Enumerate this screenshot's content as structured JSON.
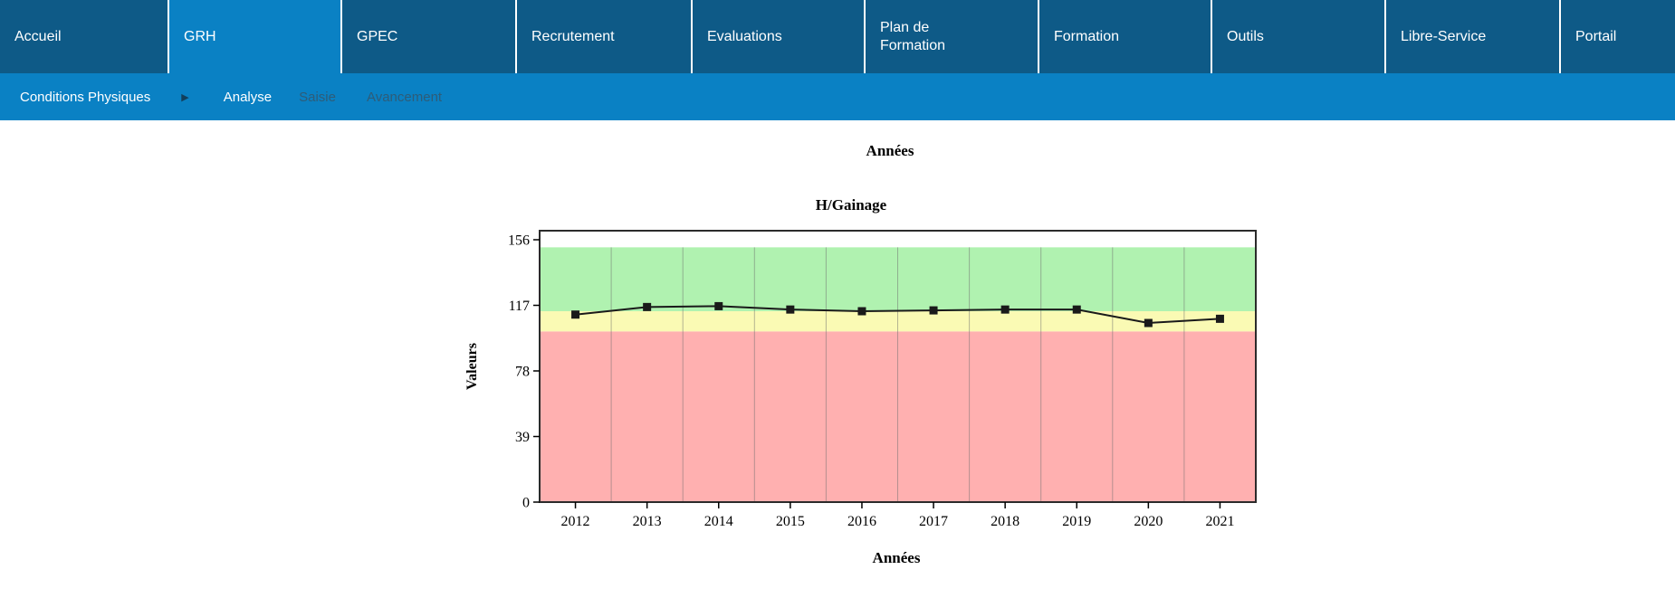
{
  "nav": {
    "tabs": [
      {
        "label": "Accueil",
        "active": false
      },
      {
        "label": "GRH",
        "active": true
      },
      {
        "label": "GPEC",
        "active": false
      },
      {
        "label": "Recrutement",
        "active": false
      },
      {
        "label": "Evaluations",
        "active": false
      },
      {
        "label": "Plan de Formation",
        "active": false
      },
      {
        "label": "Formation",
        "active": false
      },
      {
        "label": "Outils",
        "active": false
      },
      {
        "label": "Libre-Service",
        "active": false
      },
      {
        "label": "Portail",
        "active": false
      }
    ]
  },
  "subnav": {
    "breadcrumb": "Conditions Physiques",
    "arrow_icon": "▶",
    "items": [
      {
        "label": "Analyse",
        "state": "active"
      },
      {
        "label": "Saisie",
        "state": "disabled"
      },
      {
        "label": "Avancement",
        "state": "disabled"
      }
    ]
  },
  "colors": {
    "nav_background": "#0e5a87",
    "nav_active_background": "#0a81c4",
    "subnav_background": "#0a81c4",
    "subnav_disabled_text": "#2e5c78",
    "zone_green": "#b0f2b0",
    "zone_yellow": "#fafab4",
    "zone_red": "#ffb0b0",
    "series_line": "#1a1a1a"
  },
  "chart_data": {
    "type": "line",
    "top_label": "Années",
    "title": "H/Gainage",
    "xlabel": "Années",
    "ylabel": "Valeurs",
    "categories": [
      "2012",
      "2013",
      "2014",
      "2015",
      "2016",
      "2017",
      "2018",
      "2019",
      "2020",
      "2021"
    ],
    "values": [
      111.5,
      116,
      116.5,
      114.5,
      113.5,
      114,
      114.5,
      114.5,
      106.5,
      109
    ],
    "ylim": [
      0,
      156
    ],
    "yticks": [
      0,
      39,
      78,
      117,
      156
    ],
    "zones": [
      {
        "name": "red",
        "from": 0,
        "to": 101.5,
        "color": "#ffb0b0"
      },
      {
        "name": "yellow",
        "from": 101.5,
        "to": 113.5,
        "color": "#fafab4"
      },
      {
        "name": "green",
        "from": 113.5,
        "to": 151.5,
        "color": "#b0f2b0"
      }
    ],
    "line_color": "#1a1a1a",
    "marker": "square",
    "grid": "vertical",
    "legend": "none"
  }
}
